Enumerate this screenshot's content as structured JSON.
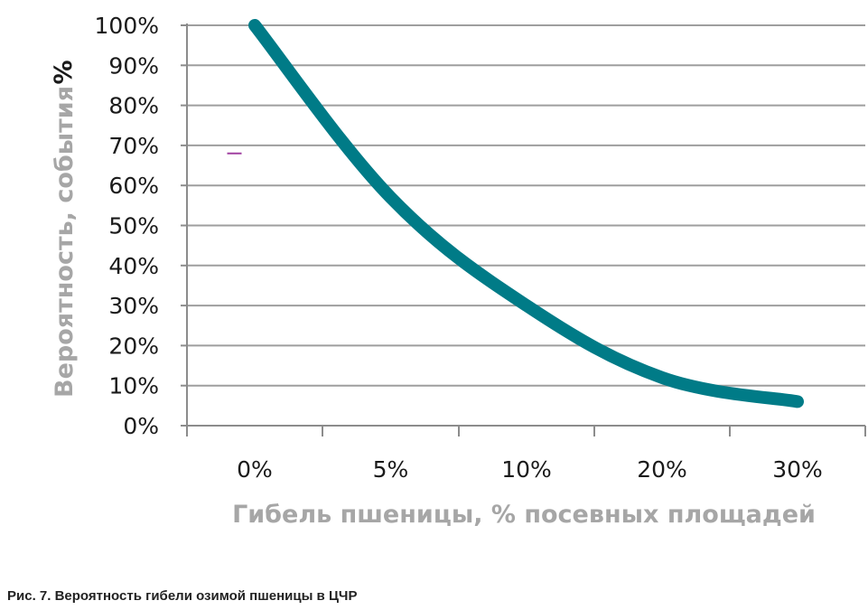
{
  "figure": {
    "caption": "Рис. 7. Вероятность гибели озимой пшеницы в ЦЧР"
  },
  "chart_data": {
    "type": "line",
    "xlabel": "Гибель пшеницы, % посевных площадей",
    "ylabel": "Вероятность, события",
    "ylabel_unit": "%",
    "x_categories": [
      "0%",
      "5%",
      "10%",
      "20%",
      "30%"
    ],
    "y_ticks": [
      "0%",
      "10%",
      "20%",
      "30%",
      "40%",
      "50%",
      "60%",
      "70%",
      "80%",
      "90%",
      "100%"
    ],
    "ylim": [
      0,
      100
    ],
    "grid": true,
    "legend": "none",
    "colors": {
      "series": "#007b87",
      "grid": "#9e9e9e",
      "axis": "#8c8c8c",
      "marker": "#a040a0"
    },
    "series": [
      {
        "x": [
          "0%",
          "5%",
          "10%",
          "20%",
          "30%"
        ],
        "y": [
          100,
          57,
          30,
          12,
          6
        ]
      }
    ],
    "annotations": [
      {
        "type": "short-line-mark",
        "x_category_pos": 0.35,
        "y": 68
      }
    ]
  }
}
